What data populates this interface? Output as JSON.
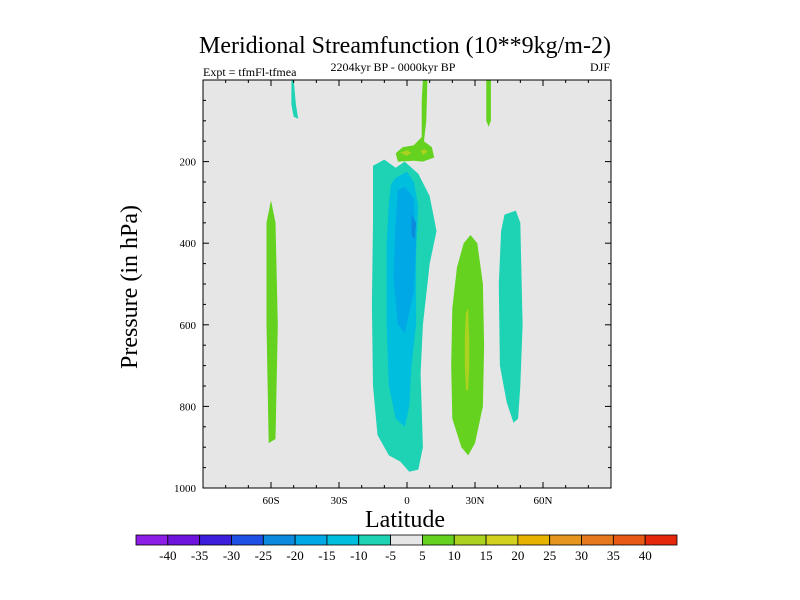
{
  "chart_data": {
    "type": "contour",
    "title": "Meridional Streamfunction (10**9kg/m-2)",
    "subtitle": "2204kyr BP - 0000kyr BP",
    "left_label": "Expt = tfmFl-tfmea",
    "right_label": "DJF",
    "xlabel": "Latitude",
    "ylabel": "Pressure (in hPa)",
    "xlim": [
      -90,
      90
    ],
    "ylim": [
      0,
      1000
    ],
    "y_reversed": true,
    "xticks": [
      {
        "value": -60,
        "label": "60S"
      },
      {
        "value": -30,
        "label": "30S"
      },
      {
        "value": 0,
        "label": "0"
      },
      {
        "value": 30,
        "label": "30N"
      },
      {
        "value": 60,
        "label": "60N"
      }
    ],
    "yticks": [
      {
        "value": 200,
        "label": "200"
      },
      {
        "value": 400,
        "label": "400"
      },
      {
        "value": 600,
        "label": "600"
      },
      {
        "value": 800,
        "label": "800"
      },
      {
        "value": 1000,
        "label": "1000"
      }
    ],
    "background_color": "#e6e6e6",
    "contour_regions": [
      {
        "name": "sh-midlat-positive",
        "level": "5 to 10",
        "color": "#64d21e",
        "points": [
          [
            -60,
            295
          ],
          [
            -58,
            350
          ],
          [
            -57,
            600
          ],
          [
            -58,
            880
          ],
          [
            -61,
            890
          ],
          [
            -62,
            600
          ],
          [
            -62,
            350
          ]
        ]
      },
      {
        "name": "sh-top-negative",
        "level": "-10 to -5",
        "color": "#1ed2b4",
        "points": [
          [
            -50,
            0
          ],
          [
            -49,
            60
          ],
          [
            -48,
            95
          ],
          [
            -50,
            90
          ],
          [
            -51,
            60
          ],
          [
            -51,
            0
          ]
        ]
      },
      {
        "name": "tropical-cell-outer",
        "level": "-10 to -5",
        "color": "#1ed2b4",
        "points": [
          [
            -15,
            210
          ],
          [
            -10,
            195
          ],
          [
            -5,
            215
          ],
          [
            -1,
            200
          ],
          [
            5,
            230
          ],
          [
            10,
            285
          ],
          [
            13,
            370
          ],
          [
            10,
            450
          ],
          [
            7,
            600
          ],
          [
            6,
            720
          ],
          [
            7,
            900
          ],
          [
            5,
            955
          ],
          [
            1,
            960
          ],
          [
            -3,
            935
          ],
          [
            -8,
            920
          ],
          [
            -13,
            870
          ],
          [
            -15,
            750
          ],
          [
            -15.5,
            550
          ],
          [
            -15,
            350
          ]
        ]
      },
      {
        "name": "tropical-cell-mid",
        "level": "-15 to -10",
        "color": "#00bede",
        "points": [
          [
            -7,
            255
          ],
          [
            -5,
            240
          ],
          [
            0,
            225
          ],
          [
            3,
            250
          ],
          [
            5,
            310
          ],
          [
            4,
            420
          ],
          [
            4,
            600
          ],
          [
            2,
            700
          ],
          [
            1,
            800
          ],
          [
            -1,
            850
          ],
          [
            -5,
            830
          ],
          [
            -8,
            750
          ],
          [
            -9,
            600
          ],
          [
            -9,
            400
          ],
          [
            -8,
            300
          ]
        ]
      },
      {
        "name": "tropical-cell-core",
        "level": "-20 to -15",
        "color": "#00a8e6",
        "points": [
          [
            -4,
            270
          ],
          [
            -1,
            262
          ],
          [
            3,
            290
          ],
          [
            4,
            400
          ],
          [
            3,
            520
          ],
          [
            -1,
            620
          ],
          [
            -4,
            600
          ],
          [
            -6,
            480
          ],
          [
            -5,
            350
          ]
        ]
      },
      {
        "name": "tropical-cell-peak",
        "level": "-25 to -20",
        "color": "#0b8ade",
        "points": [
          [
            2,
            330
          ],
          [
            4,
            350
          ],
          [
            3.5,
            390
          ],
          [
            2,
            380
          ]
        ]
      },
      {
        "name": "eq-top-positive",
        "level": "5 to 10",
        "color": "#64d21e",
        "points": [
          [
            7,
            0
          ],
          [
            9,
            0
          ],
          [
            8.5,
            100
          ],
          [
            7.5,
            150
          ],
          [
            11,
            165
          ],
          [
            12,
            190
          ],
          [
            7,
            200
          ],
          [
            3,
            198
          ],
          [
            -4,
            200
          ],
          [
            -5,
            180
          ],
          [
            -2,
            165
          ],
          [
            3,
            160
          ],
          [
            6.5,
            140
          ],
          [
            6.5,
            50
          ]
        ]
      },
      {
        "name": "eq-top-core-left",
        "level": "10 to 15",
        "color": "#aad21e",
        "points": [
          [
            -3,
            178
          ],
          [
            0,
            172
          ],
          [
            2,
            178
          ],
          [
            0,
            186
          ]
        ]
      },
      {
        "name": "eq-top-core-right",
        "level": "10 to 15",
        "color": "#aad21e",
        "points": [
          [
            6,
            172
          ],
          [
            8,
            170
          ],
          [
            9,
            176
          ],
          [
            7,
            184
          ]
        ]
      },
      {
        "name": "nh-top-positive",
        "level": "5 to 10",
        "color": "#64d21e",
        "points": [
          [
            35,
            0
          ],
          [
            37,
            0
          ],
          [
            37,
            100
          ],
          [
            36,
            115
          ],
          [
            35,
            100
          ]
        ]
      },
      {
        "name": "nh-subtrop-positive",
        "level": "5 to 10",
        "color": "#64d21e",
        "points": [
          [
            25,
            400
          ],
          [
            28,
            380
          ],
          [
            31,
            400
          ],
          [
            33.5,
            500
          ],
          [
            34,
            650
          ],
          [
            33.5,
            800
          ],
          [
            30,
            890
          ],
          [
            27,
            920
          ],
          [
            24,
            900
          ],
          [
            20,
            830
          ],
          [
            19.5,
            700
          ],
          [
            20,
            560
          ],
          [
            22,
            460
          ]
        ]
      },
      {
        "name": "nh-subtrop-core",
        "level": "10 to 15",
        "color": "#aad21e",
        "points": [
          [
            26,
            570
          ],
          [
            27,
            560
          ],
          [
            27.5,
            640
          ],
          [
            27.5,
            700
          ],
          [
            27,
            760
          ],
          [
            26,
            760
          ],
          [
            25.5,
            700
          ],
          [
            25.5,
            630
          ]
        ]
      },
      {
        "name": "nh-midlat-negative",
        "level": "-10 to -5",
        "color": "#1ed2b4",
        "points": [
          [
            43,
            330
          ],
          [
            48,
            320
          ],
          [
            50,
            350
          ],
          [
            51,
            600
          ],
          [
            50,
            750
          ],
          [
            49,
            830
          ],
          [
            47,
            840
          ],
          [
            44,
            790
          ],
          [
            41,
            700
          ],
          [
            40.5,
            500
          ],
          [
            41.5,
            370
          ]
        ]
      }
    ],
    "colorbar": {
      "labels": [
        "-40",
        "-35",
        "-30",
        "-25",
        "-20",
        "-15",
        "-10",
        "-5",
        "5",
        "10",
        "15",
        "20",
        "25",
        "30",
        "35",
        "40"
      ],
      "colors": [
        "#8c1ee6",
        "#6e14dc",
        "#3c1edc",
        "#1e50e6",
        "#0b8ade",
        "#00a8e6",
        "#00bede",
        "#1ed2b4",
        "#e6e6e6",
        "#64d21e",
        "#aad21e",
        "#d2d21e",
        "#e6b400",
        "#e6961e",
        "#e6781e",
        "#e65a14",
        "#e6280a"
      ]
    }
  }
}
